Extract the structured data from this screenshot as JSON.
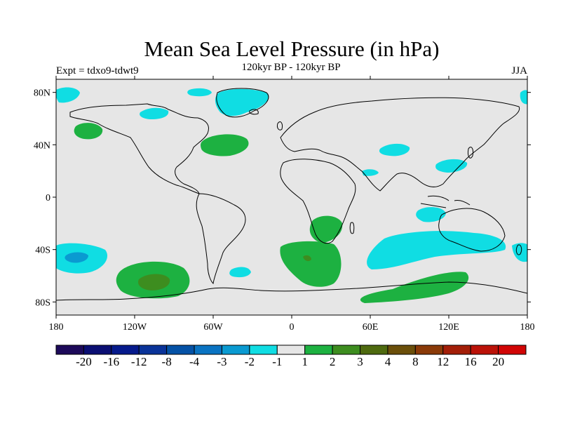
{
  "title": "Mean Sea Level Pressure (in hPa)",
  "subtitle_left": "Expt = tdxo9-tdwt9",
  "subtitle_center": "120kyr BP - 120kyr BP",
  "subtitle_right": "JJA",
  "map": {
    "projection": "cylindrical-equidistant",
    "lon_range": [
      -180,
      180
    ],
    "lat_range": [
      -90,
      90
    ],
    "background_color": "#e6e6e6",
    "coastline_color": "#000000",
    "lat_ticks": [
      {
        "value": 80,
        "label": "80N"
      },
      {
        "value": 40,
        "label": "40N"
      },
      {
        "value": 0,
        "label": "0"
      },
      {
        "value": -40,
        "label": "40S"
      },
      {
        "value": -80,
        "label": "80S"
      }
    ],
    "lon_ticks": [
      {
        "value": -180,
        "label": "180"
      },
      {
        "value": -120,
        "label": "120W"
      },
      {
        "value": -60,
        "label": "60W"
      },
      {
        "value": 0,
        "label": "0"
      },
      {
        "value": 60,
        "label": "60E"
      },
      {
        "value": 120,
        "label": "120E"
      },
      {
        "value": 180,
        "label": "180"
      }
    ]
  },
  "colorbar": {
    "colors": [
      "#1d0a5a",
      "#0b0f73",
      "#061a8c",
      "#0a3399",
      "#0552a6",
      "#0a73c2",
      "#0a9ad1",
      "#10dde3",
      "#e6e6e6",
      "#1db141",
      "#3d8d1f",
      "#4e6a0f",
      "#6b4f0a",
      "#8a3a08",
      "#a31e08",
      "#bb1208",
      "#d10505"
    ],
    "labels": [
      "-20",
      "-16",
      "-12",
      "-8",
      "-4",
      "-3",
      "-2",
      "-1",
      "1",
      "2",
      "3",
      "4",
      "8",
      "12",
      "16",
      "20"
    ]
  },
  "anomalies": [
    {
      "name": "greenland-negative",
      "level": -1,
      "color": "#10dde3"
    },
    {
      "name": "north-atlantic-positive",
      "level": 1,
      "color": "#1db141"
    },
    {
      "name": "south-atlantic-positive",
      "level": 1,
      "color": "#1db141"
    },
    {
      "name": "south-pacific-positive",
      "level": 2,
      "color": "#3d8d1f"
    },
    {
      "name": "southern-ocean-negative",
      "level": -1,
      "color": "#10dde3"
    },
    {
      "name": "antarctic-indian-positive",
      "level": 1,
      "color": "#1db141"
    }
  ]
}
